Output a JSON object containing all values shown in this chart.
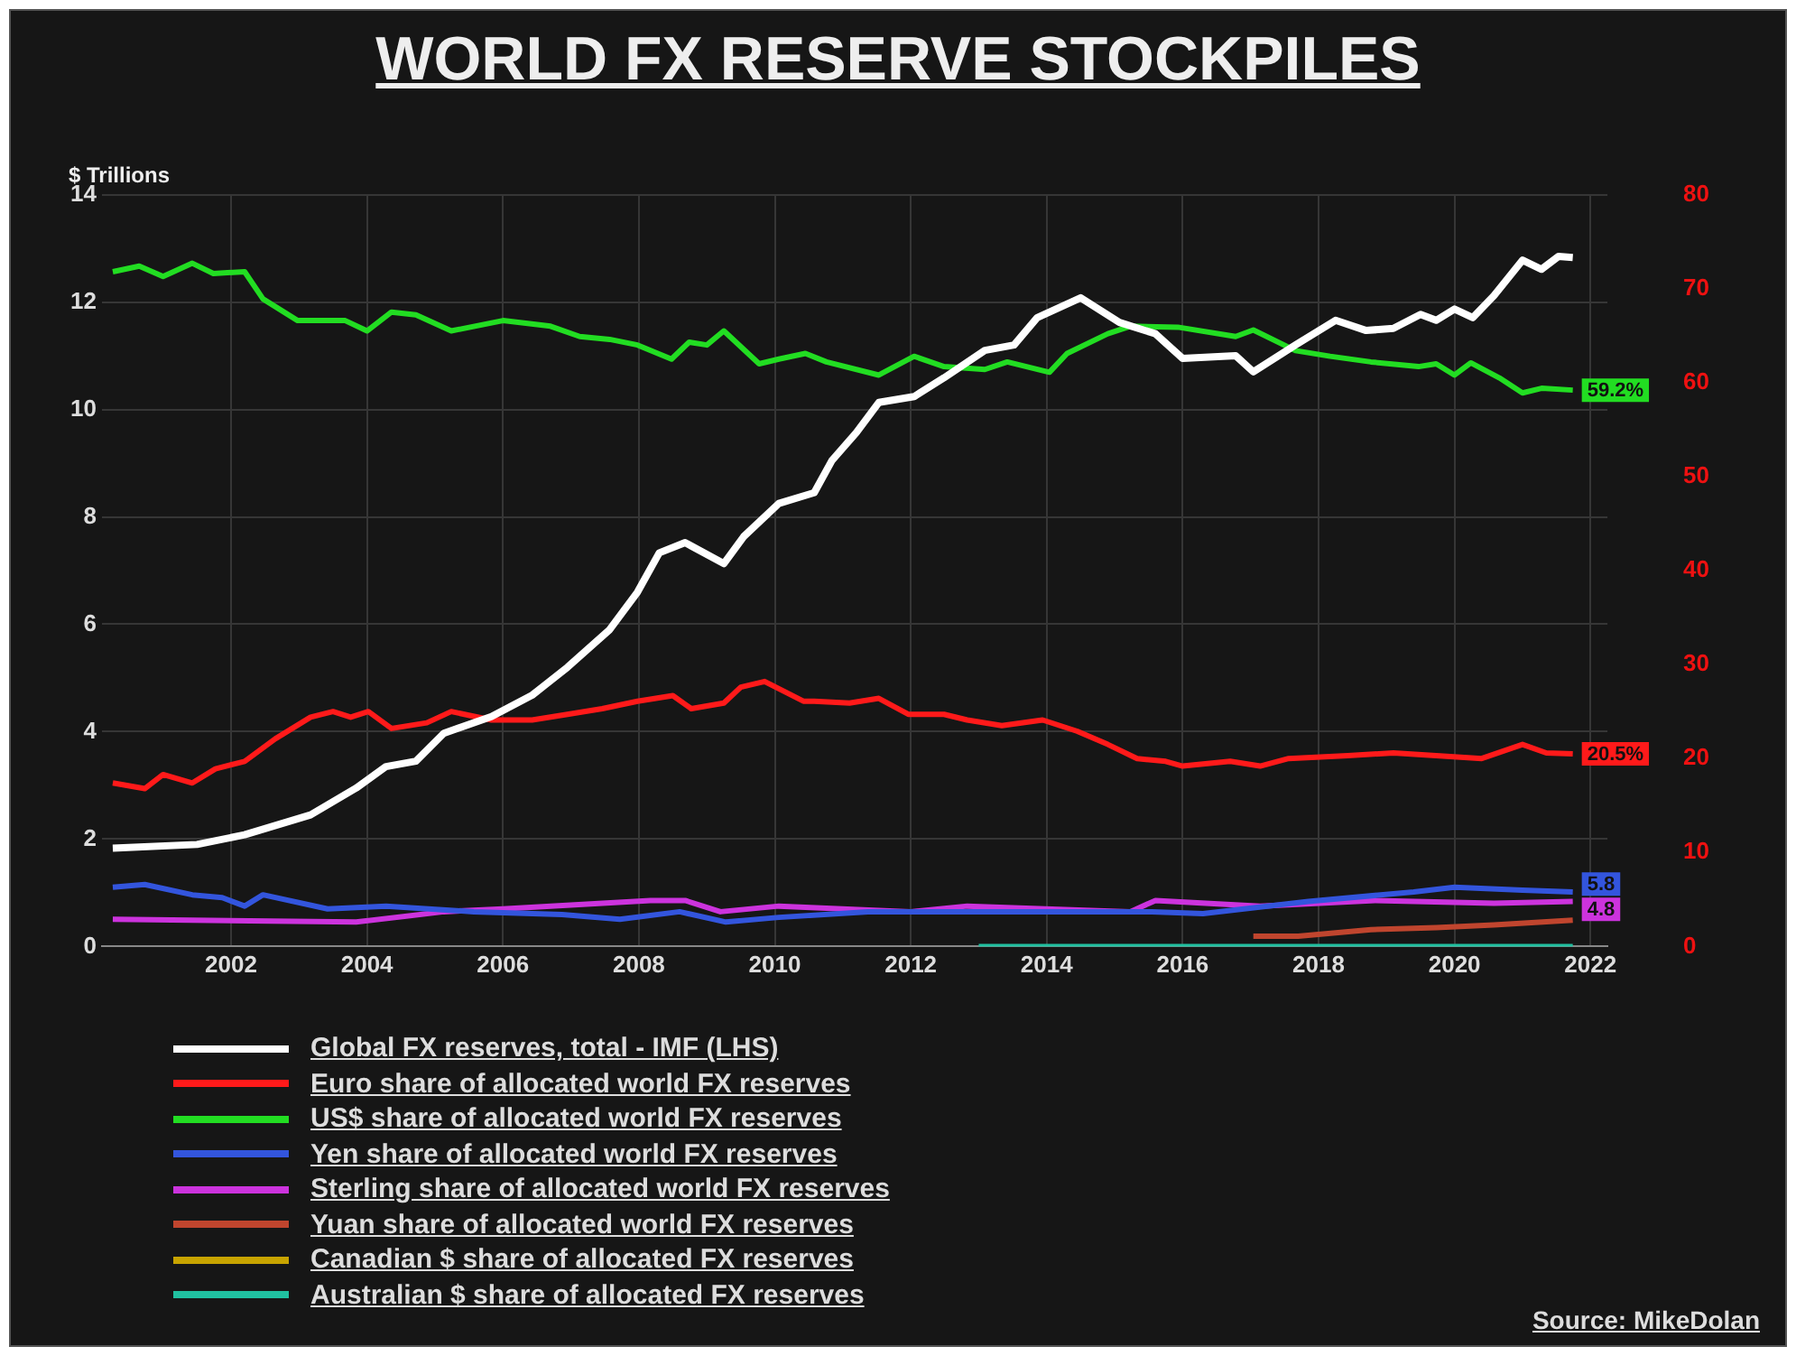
{
  "chart_data": {
    "type": "line",
    "title": "WORLD FX RESERVE STOCKPILES",
    "ylabel": "$ Trillions",
    "xlim": [
      2000.1,
      2022.25
    ],
    "xticks": [
      2002,
      2004,
      2006,
      2008,
      2010,
      2012,
      2014,
      2016,
      2018,
      2020,
      2022
    ],
    "ylim": [
      0,
      14
    ],
    "yticks": [
      0,
      2,
      4,
      6,
      8,
      10,
      12,
      14
    ],
    "y2lim": [
      0,
      80
    ],
    "y2ticks": [
      0,
      10,
      20,
      30,
      40,
      50,
      60,
      70,
      80
    ],
    "grid": true,
    "legend": "bottom",
    "marker": "none",
    "line_style": "solid",
    "annotations": [
      "Source: MikeDolan"
    ],
    "series": [
      {
        "name": "Global FX reserves, total - IMF (LHS)",
        "color": "#ffffff",
        "x": [
          2000.26,
          2001.5,
          2002.2,
          2003.17,
          2003.84,
          2004.28,
          2004.72,
          2005.13,
          2005.83,
          2006.43,
          2006.95,
          2007.57,
          2007.98,
          2008.3,
          2008.68,
          2009.25,
          2009.54,
          2010.06,
          2010.58,
          2010.84,
          2011.2,
          2011.53,
          2012.05,
          2012.49,
          2013.09,
          2013.52,
          2013.86,
          2014.5,
          2015.07,
          2015.6,
          2016.0,
          2016.78,
          2017.04,
          2017.66,
          2018.25,
          2018.7,
          2019.1,
          2019.5,
          2019.73,
          2020.0,
          2020.27,
          2020.58,
          2021.0,
          2021.28,
          2021.53,
          2021.74
        ],
        "values": [
          1.83,
          1.9,
          2.08,
          2.45,
          2.95,
          3.35,
          3.45,
          3.97,
          4.28,
          4.68,
          5.2,
          5.9,
          6.6,
          7.33,
          7.52,
          7.13,
          7.63,
          8.25,
          8.45,
          9.05,
          9.57,
          10.13,
          10.24,
          10.59,
          11.1,
          11.2,
          11.71,
          12.08,
          11.62,
          11.41,
          10.95,
          11.0,
          10.7,
          11.2,
          11.66,
          11.47,
          11.51,
          11.77,
          11.66,
          11.87,
          11.71,
          12.12,
          12.78,
          12.61,
          12.85,
          12.83
        ]
      },
      {
        "name": "Euro share of allocated world FX reserves",
        "color": "#ff1a1a",
        "axis": "y2",
        "x": [
          2000.26,
          2000.73,
          2001.0,
          2001.43,
          2001.77,
          2002.2,
          2002.65,
          2003.17,
          2003.5,
          2003.76,
          2004.02,
          2004.36,
          2004.88,
          2005.24,
          2005.83,
          2006.43,
          2006.95,
          2007.46,
          2007.98,
          2008.5,
          2008.77,
          2009.25,
          2009.5,
          2009.85,
          2010.42,
          2010.58,
          2011.1,
          2011.53,
          2011.97,
          2012.49,
          2012.83,
          2013.34,
          2013.94,
          2014.45,
          2014.9,
          2015.33,
          2015.75,
          2016.0,
          2016.7,
          2017.14,
          2017.56,
          2018.43,
          2019.1,
          2019.73,
          2020.4,
          2021.0,
          2021.35,
          2021.74
        ],
        "values": [
          17.4,
          16.8,
          18.3,
          17.4,
          18.9,
          19.7,
          22.1,
          24.4,
          25.0,
          24.4,
          25.0,
          23.2,
          23.8,
          25.0,
          24.1,
          24.1,
          24.7,
          25.3,
          26.1,
          26.7,
          25.3,
          25.9,
          27.6,
          28.2,
          26.1,
          26.1,
          25.9,
          26.4,
          24.7,
          24.7,
          24.1,
          23.5,
          24.1,
          22.9,
          21.5,
          20.0,
          19.7,
          19.2,
          19.7,
          19.2,
          20.0,
          20.3,
          20.6,
          20.3,
          20.0,
          21.5,
          20.6,
          20.5
        ],
        "value_labels": [
          null,
          null,
          null,
          null,
          null,
          null,
          null,
          null,
          null,
          null,
          null,
          null,
          null,
          null,
          null,
          null,
          null,
          null,
          null,
          null,
          null,
          null,
          null,
          null,
          null,
          null,
          null,
          null,
          null,
          null,
          null,
          null,
          null,
          null,
          null,
          null,
          null,
          null,
          null,
          null,
          null,
          null,
          null,
          null,
          null,
          null,
          null,
          "20.5%"
        ]
      },
      {
        "name": "US$ share of allocated world FX reserves",
        "color": "#22dd22",
        "axis": "y2",
        "x": [
          2000.26,
          2000.65,
          2001.0,
          2001.43,
          2001.74,
          2002.2,
          2002.47,
          2002.98,
          2003.68,
          2004.0,
          2004.36,
          2004.72,
          2005.24,
          2006.0,
          2006.7,
          2007.13,
          2007.57,
          2007.98,
          2008.48,
          2008.74,
          2009.0,
          2009.25,
          2009.77,
          2010.06,
          2010.45,
          2010.76,
          2011.53,
          2012.05,
          2012.49,
          2013.09,
          2013.42,
          2014.04,
          2014.3,
          2014.9,
          2015.23,
          2015.93,
          2016.78,
          2017.04,
          2017.66,
          2018.17,
          2018.77,
          2019.47,
          2019.73,
          2020.0,
          2020.24,
          2020.66,
          2021.0,
          2021.28,
          2021.74
        ],
        "values": [
          71.8,
          72.4,
          71.3,
          72.7,
          71.6,
          71.8,
          68.9,
          66.6,
          66.6,
          65.5,
          67.5,
          67.2,
          65.5,
          66.6,
          66.0,
          64.9,
          64.6,
          64.0,
          62.5,
          64.3,
          64.0,
          65.5,
          62.0,
          62.5,
          63.1,
          62.2,
          60.8,
          62.8,
          61.7,
          61.4,
          62.2,
          61.1,
          63.1,
          65.2,
          66.0,
          65.9,
          64.9,
          65.6,
          63.4,
          62.8,
          62.2,
          61.7,
          62.0,
          60.8,
          62.1,
          60.5,
          58.9,
          59.4,
          59.2
        ],
        "value_labels": [
          null,
          null,
          null,
          null,
          null,
          null,
          null,
          null,
          null,
          null,
          null,
          null,
          null,
          null,
          null,
          null,
          null,
          null,
          null,
          null,
          null,
          null,
          null,
          null,
          null,
          null,
          null,
          null,
          null,
          null,
          null,
          null,
          null,
          null,
          null,
          null,
          null,
          null,
          null,
          null,
          null,
          null,
          null,
          null,
          null,
          null,
          null,
          null,
          "59.2%"
        ]
      },
      {
        "name": "Yen share of allocated world FX reserves",
        "color": "#3355dd",
        "axis": "y2",
        "x": [
          2000.26,
          2000.73,
          2001.43,
          2001.87,
          2002.2,
          2002.47,
          2003.42,
          2004.28,
          2005.57,
          2006.87,
          2007.72,
          2008.6,
          2009.28,
          2010.06,
          2011.37,
          2015.55,
          2016.3,
          2017.85,
          2019.4,
          2020.0,
          2021.0,
          2021.74
        ],
        "values": [
          6.3,
          6.6,
          5.5,
          5.2,
          4.3,
          5.5,
          4.0,
          4.3,
          3.7,
          3.4,
          2.9,
          3.7,
          2.6,
          3.1,
          3.7,
          3.7,
          3.5,
          4.8,
          5.8,
          6.3,
          6.0,
          5.8
        ],
        "value_labels": [
          null,
          null,
          null,
          null,
          null,
          null,
          null,
          null,
          null,
          null,
          null,
          null,
          null,
          null,
          null,
          null,
          null,
          null,
          null,
          null,
          null,
          "5.8"
        ]
      },
      {
        "name": "Sterling share of allocated world FX reserves",
        "color": "#cc33dd",
        "axis": "y2",
        "x": [
          2000.26,
          2003.84,
          2005.13,
          2006.0,
          2008.17,
          2008.68,
          2009.2,
          2010.06,
          2012.0,
          2012.83,
          2015.23,
          2015.6,
          2017.14,
          2018.83,
          2020.58,
          2021.74
        ],
        "values": [
          2.9,
          2.6,
          3.7,
          4.0,
          4.9,
          4.9,
          3.7,
          4.3,
          3.7,
          4.3,
          3.7,
          4.9,
          4.3,
          4.9,
          4.6,
          4.8
        ],
        "value_labels": [
          null,
          null,
          null,
          null,
          null,
          null,
          null,
          null,
          null,
          null,
          null,
          null,
          null,
          null,
          null,
          "4.8"
        ]
      },
      {
        "name": "Yuan share of allocated world FX reserves",
        "color": "#c0452e",
        "axis": "y2",
        "x": [
          2017.04,
          2017.7,
          2018.77,
          2019.73,
          2020.58,
          2021.74
        ],
        "values": [
          1.1,
          1.1,
          1.8,
          2.0,
          2.3,
          2.8
        ]
      },
      {
        "name": "Canadian $ share of allocated FX reserves",
        "color": "#c8a400",
        "axis": "y2"
      },
      {
        "name": "Australian $ share of allocated FX reserves",
        "color": "#20c0a0",
        "axis": "y2",
        "x": [
          2013.0,
          2021.74
        ],
        "values": [
          0,
          0
        ]
      }
    ]
  }
}
